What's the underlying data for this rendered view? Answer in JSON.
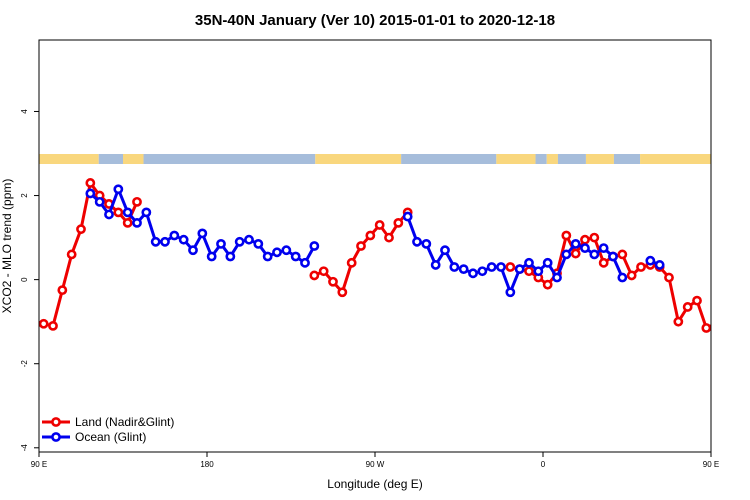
{
  "chart_data": {
    "type": "line",
    "title": "35N-40N January (Ver 10)   2015-01-01 to 2020-12-18",
    "xlabel": "Longitude (deg E)",
    "ylabel": "XCO2 - MLO trend (ppm)",
    "x_plot_range": [
      90,
      450
    ],
    "x_ticks": [
      {
        "x": 90,
        "label": "90 E"
      },
      {
        "x": 180,
        "label": "180"
      },
      {
        "x": 270,
        "label": "90 W"
      },
      {
        "x": 360,
        "label": "0"
      },
      {
        "x": 450,
        "label": "90 E"
      },
      {
        "x": 540,
        "label": "180"
      }
    ],
    "ylim": [
      -4.1,
      5.7
    ],
    "y_ticks": [
      -4,
      -2,
      0,
      2,
      4
    ],
    "grid": false,
    "legend_position": "bottom-left",
    "colors": {
      "land": "#ee0000",
      "ocean": "#0000ee",
      "land_strip": "#f9d77e",
      "ocean_strip": "#a6bddb"
    },
    "series": [
      {
        "name": "Land (Nadir&Glint)",
        "color": "#ee0000",
        "segments": [
          [
            [
              92.5,
              -1.05
            ],
            [
              97.5,
              -1.1
            ],
            [
              102.5,
              -0.25
            ],
            [
              107.5,
              0.6
            ],
            [
              112.5,
              1.2
            ],
            [
              117.5,
              2.3
            ],
            [
              122.5,
              2.0
            ],
            [
              127.5,
              1.8
            ],
            [
              132.5,
              1.6
            ],
            [
              137.5,
              1.35
            ],
            [
              142.5,
              1.85
            ]
          ],
          [
            [
              237.5,
              0.1
            ],
            [
              242.5,
              0.2
            ],
            [
              247.5,
              -0.05
            ],
            [
              252.5,
              -0.3
            ],
            [
              257.5,
              0.4
            ],
            [
              262.5,
              0.8
            ],
            [
              267.5,
              1.05
            ],
            [
              272.5,
              1.3
            ],
            [
              277.5,
              1.0
            ],
            [
              282.5,
              1.35
            ],
            [
              287.5,
              1.6
            ]
          ],
          [
            [
              342.5,
              0.3
            ],
            [
              347.5,
              0.25
            ],
            [
              352.5,
              0.2
            ],
            [
              357.5,
              0.05
            ],
            [
              362.5,
              -0.12
            ],
            [
              367.5,
              0.15
            ],
            [
              372.5,
              1.05
            ],
            [
              377.5,
              0.62
            ],
            [
              382.5,
              0.95
            ],
            [
              387.5,
              1.0
            ],
            [
              392.5,
              0.4
            ],
            [
              397.5,
              0.55
            ],
            [
              402.5,
              0.6
            ],
            [
              407.5,
              0.1
            ],
            [
              412.5,
              0.3
            ],
            [
              417.5,
              0.35
            ],
            [
              422.5,
              0.3
            ],
            [
              427.5,
              0.05
            ],
            [
              432.5,
              -1.0
            ],
            [
              437.5,
              -0.65
            ],
            [
              442.5,
              -0.5
            ],
            [
              447.5,
              -1.15
            ],
            [
              452.5,
              -1.05
            ],
            [
              457.5,
              -1.1
            ],
            [
              462.5,
              -0.25
            ],
            [
              467.5,
              0.6
            ],
            [
              472.5,
              1.2
            ],
            [
              477.5,
              2.3
            ],
            [
              482.5,
              2.0
            ],
            [
              487.5,
              1.8
            ],
            [
              492.5,
              1.6
            ],
            [
              497.5,
              1.35
            ],
            [
              502.5,
              1.85
            ]
          ]
        ]
      },
      {
        "name": "Ocean (Glint)",
        "color": "#0000ee",
        "segments": [
          [
            [
              117.5,
              2.05
            ],
            [
              122.5,
              1.85
            ],
            [
              127.5,
              1.55
            ],
            [
              132.5,
              2.15
            ],
            [
              137.5,
              1.6
            ],
            [
              142.5,
              1.35
            ],
            [
              147.5,
              1.6
            ],
            [
              152.5,
              0.9
            ],
            [
              157.5,
              0.9
            ],
            [
              162.5,
              1.05
            ],
            [
              167.5,
              0.95
            ],
            [
              172.5,
              0.7
            ],
            [
              177.5,
              1.1
            ],
            [
              182.5,
              0.55
            ],
            [
              187.5,
              0.85
            ],
            [
              192.5,
              0.55
            ],
            [
              197.5,
              0.9
            ],
            [
              202.5,
              0.95
            ],
            [
              207.5,
              0.85
            ],
            [
              212.5,
              0.55
            ],
            [
              217.5,
              0.65
            ],
            [
              222.5,
              0.7
            ],
            [
              227.5,
              0.55
            ],
            [
              232.5,
              0.4
            ],
            [
              237.5,
              0.8
            ]
          ],
          [
            [
              287.5,
              1.5
            ],
            [
              292.5,
              0.9
            ],
            [
              297.5,
              0.85
            ],
            [
              302.5,
              0.35
            ],
            [
              307.5,
              0.7
            ],
            [
              312.5,
              0.3
            ],
            [
              317.5,
              0.25
            ],
            [
              322.5,
              0.15
            ],
            [
              327.5,
              0.2
            ],
            [
              332.5,
              0.3
            ],
            [
              337.5,
              0.3
            ],
            [
              342.5,
              -0.3
            ],
            [
              347.5,
              0.25
            ],
            [
              352.5,
              0.4
            ],
            [
              357.5,
              0.2
            ],
            [
              362.5,
              0.4
            ],
            [
              367.5,
              0.05
            ],
            [
              372.5,
              0.6
            ],
            [
              377.5,
              0.85
            ],
            [
              382.5,
              0.75
            ],
            [
              387.5,
              0.6
            ],
            [
              392.5,
              0.75
            ],
            [
              397.5,
              0.55
            ],
            [
              402.5,
              0.05
            ]
          ],
          [
            [
              417.5,
              0.45
            ],
            [
              422.5,
              0.35
            ]
          ],
          [
            [
              487.5,
              2.05
            ],
            [
              492.5,
              1.85
            ],
            [
              497.5,
              1.55
            ],
            [
              502.5,
              2.15
            ],
            [
              507.5,
              1.6
            ],
            [
              512.5,
              1.35
            ],
            [
              517.5,
              1.6
            ],
            [
              522.5,
              0.9
            ],
            [
              527.5,
              0.9
            ],
            [
              532.5,
              1.05
            ],
            [
              537.5,
              0.95
            ],
            [
              542.5,
              0.7
            ],
            [
              547.5,
              1.1
            ]
          ]
        ]
      }
    ],
    "land_ocean_strip": [
      {
        "from": 90,
        "to": 122,
        "type": "land"
      },
      {
        "from": 122,
        "to": 135,
        "type": "ocean"
      },
      {
        "from": 135,
        "to": 146,
        "type": "land"
      },
      {
        "from": 146,
        "to": 238,
        "type": "ocean"
      },
      {
        "from": 238,
        "to": 284,
        "type": "land"
      },
      {
        "from": 284,
        "to": 335,
        "type": "ocean"
      },
      {
        "from": 335,
        "to": 356,
        "type": "land"
      },
      {
        "from": 356,
        "to": 362,
        "type": "ocean"
      },
      {
        "from": 362,
        "to": 368,
        "type": "land"
      },
      {
        "from": 368,
        "to": 383,
        "type": "ocean"
      },
      {
        "from": 383,
        "to": 398,
        "type": "land"
      },
      {
        "from": 398,
        "to": 412,
        "type": "ocean"
      },
      {
        "from": 412,
        "to": 492,
        "type": "land"
      },
      {
        "from": 492,
        "to": 505,
        "type": "ocean"
      },
      {
        "from": 505,
        "to": 516,
        "type": "land"
      },
      {
        "from": 516,
        "to": 550,
        "type": "ocean"
      }
    ]
  }
}
